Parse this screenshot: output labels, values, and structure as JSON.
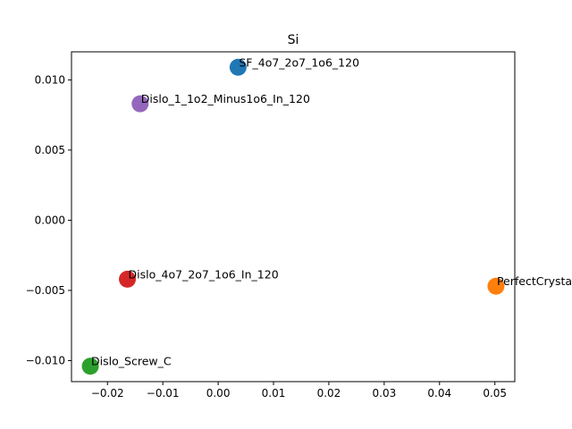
{
  "chart_data": {
    "type": "scatter",
    "title": "Si",
    "xlabel": "",
    "ylabel": "",
    "xlim": [
      -0.0265,
      0.0536
    ],
    "ylim": [
      -0.0115,
      0.012
    ],
    "grid": false,
    "xticks": [
      {
        "value": -0.02,
        "label": "−0.02"
      },
      {
        "value": -0.01,
        "label": "−0.01"
      },
      {
        "value": 0.0,
        "label": "0.00"
      },
      {
        "value": 0.01,
        "label": "0.01"
      },
      {
        "value": 0.02,
        "label": "0.02"
      },
      {
        "value": 0.03,
        "label": "0.03"
      },
      {
        "value": 0.04,
        "label": "0.04"
      },
      {
        "value": 0.05,
        "label": "0.05"
      }
    ],
    "yticks": [
      {
        "value": -0.01,
        "label": "−0.010"
      },
      {
        "value": -0.005,
        "label": "−0.005"
      },
      {
        "value": 0.0,
        "label": "0.000"
      },
      {
        "value": 0.005,
        "label": "0.005"
      },
      {
        "value": 0.01,
        "label": "0.010"
      }
    ],
    "points": [
      {
        "label": "SF_4o7_2o7_1o6_120",
        "x": 0.0036,
        "y": 0.0109,
        "color": "#1f77b4"
      },
      {
        "label": "PerfectCrystal",
        "x": 0.0502,
        "y": -0.0047,
        "color": "#ff7f0e"
      },
      {
        "label": "Dislo_Screw_C",
        "x": -0.0231,
        "y": -0.0104,
        "color": "#2ca02c"
      },
      {
        "label": "Dislo_4o7_2o7_1o6_In_120",
        "x": -0.0164,
        "y": -0.0042,
        "color": "#d62728"
      },
      {
        "label": "Dislo_1_1o2_Minus1o6_In_120",
        "x": -0.0141,
        "y": 0.0083,
        "color": "#9467bd"
      }
    ]
  }
}
